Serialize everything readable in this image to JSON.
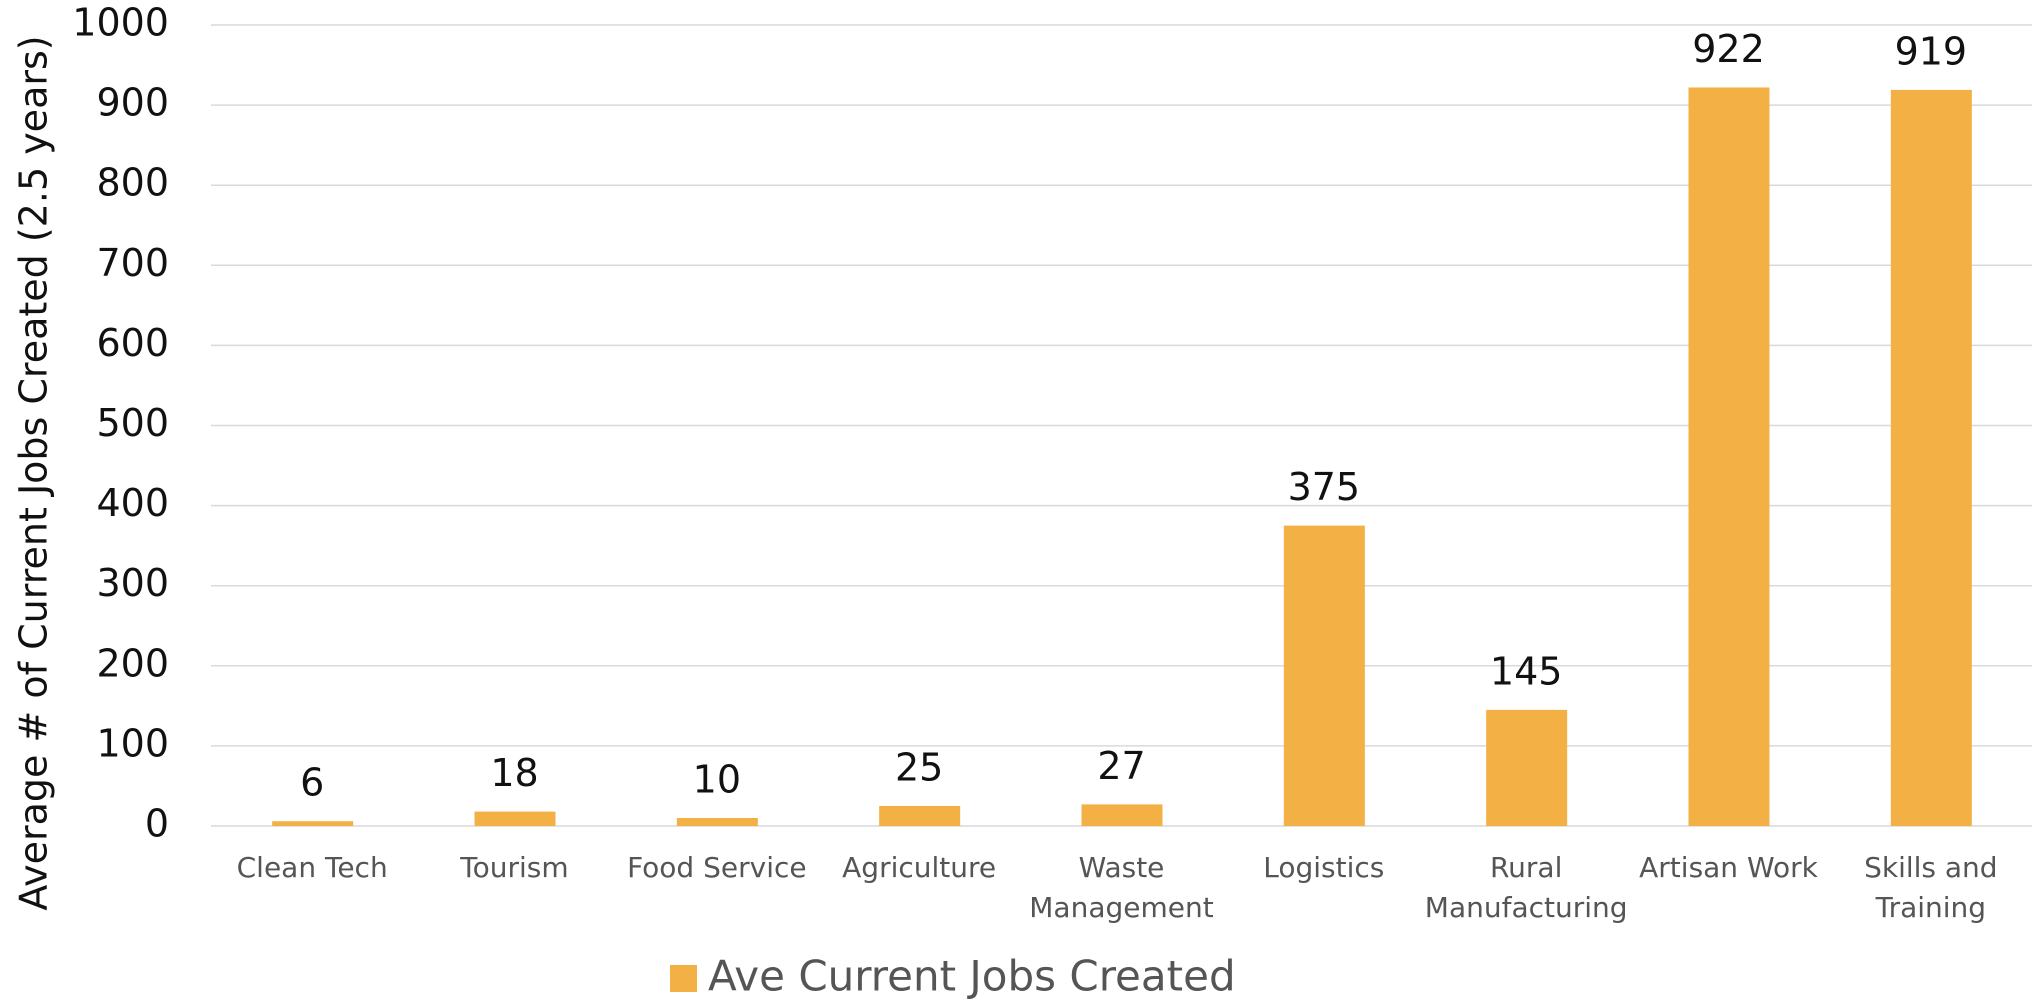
{
  "chart_data": {
    "type": "bar",
    "y_label": "Average # of Current Jobs Created (2.5 years)",
    "categories": [
      "Clean Tech",
      "Tourism",
      "Food Service",
      "Agriculture",
      "Waste Management",
      "Logistics",
      "Rural Manufacturing",
      "Artisan Work",
      "Skills and Training"
    ],
    "series": [
      {
        "name": "Ave Current Jobs Created",
        "color": "#f2b045",
        "values": [
          6,
          18,
          10,
          25,
          27,
          375,
          145,
          922,
          919
        ]
      }
    ],
    "ylim": [
      0,
      1000
    ],
    "yticks": [
      0,
      100,
      200,
      300,
      400,
      500,
      600,
      700,
      800,
      900,
      1000
    ],
    "grid": true,
    "legend": "bottom"
  }
}
